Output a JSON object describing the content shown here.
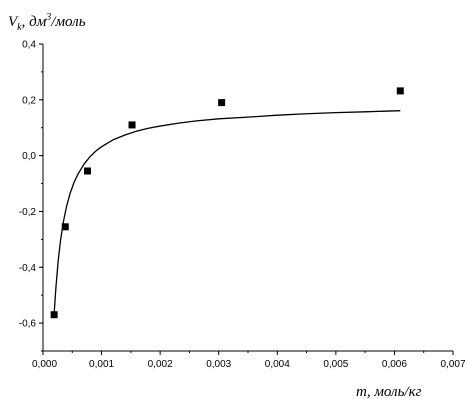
{
  "chart_data": {
    "type": "scatter",
    "title": "",
    "ylabel": {
      "main": "V",
      "sub": "k",
      "rest": ", дм",
      "sup": "3",
      "unit": "/моль"
    },
    "xlabel": {
      "main": "m",
      "rest": ",  моль/кг"
    },
    "xlim": [
      0.0,
      0.007
    ],
    "ylim": [
      -0.7,
      0.4
    ],
    "x_ticks": [
      0.0,
      0.001,
      0.002,
      0.003,
      0.004,
      0.005,
      0.006,
      0.007
    ],
    "x_tick_labels": [
      "0,000",
      "0,001",
      "0,002",
      "0,003",
      "0,004",
      "0,005",
      "0,006",
      "0,007"
    ],
    "y_ticks": [
      -0.6,
      -0.4,
      -0.2,
      0.0,
      0.2,
      0.4
    ],
    "y_tick_labels": [
      "-0,6",
      "-0,4",
      "-0,2",
      "0,0",
      "0,2",
      "0,4"
    ],
    "grid": false,
    "series": [
      {
        "marker": "square",
        "color": "#000000",
        "x": [
          0.00019,
          0.00038,
          0.00076,
          0.00152,
          0.00305,
          0.0061
        ],
        "y": [
          -0.57,
          -0.255,
          -0.055,
          0.11,
          0.19,
          0.232
        ]
      }
    ],
    "fit_curve": {
      "color": "#000000",
      "x": [
        0.00019,
        0.00022,
        0.00026,
        0.0003,
        0.00035,
        0.0004,
        0.00046,
        0.00053,
        0.0006,
        0.0007,
        0.0008,
        0.0009,
        0.001,
        0.0012,
        0.0014,
        0.0016,
        0.0018,
        0.002,
        0.0023,
        0.0026,
        0.003,
        0.0035,
        0.004,
        0.0045,
        0.005,
        0.0055,
        0.0061
      ],
      "y": [
        -0.568,
        -0.473,
        -0.375,
        -0.303,
        -0.235,
        -0.184,
        -0.137,
        -0.096,
        -0.065,
        -0.031,
        -0.004,
        0.016,
        0.032,
        0.057,
        0.074,
        0.088,
        0.098,
        0.106,
        0.116,
        0.124,
        0.132,
        0.138,
        0.145,
        0.15,
        0.154,
        0.157,
        0.161
      ]
    }
  }
}
